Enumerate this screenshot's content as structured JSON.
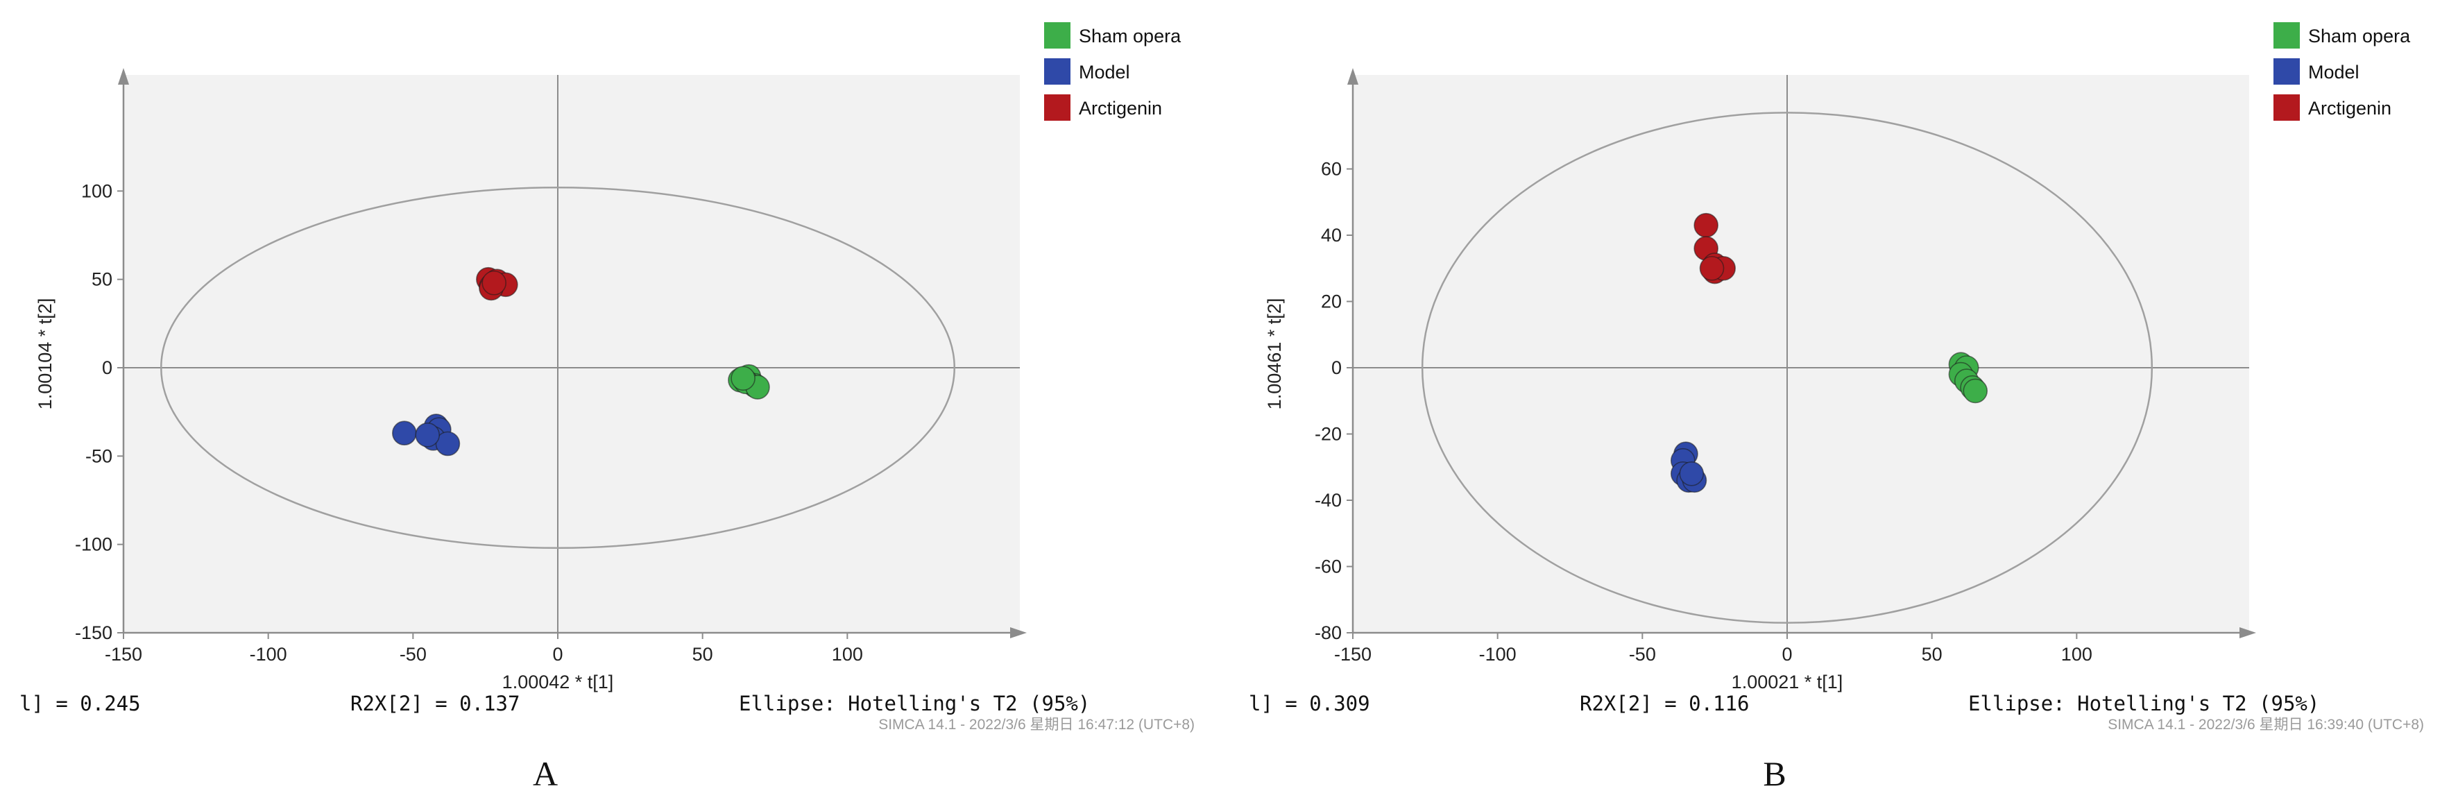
{
  "colors": {
    "plot_background": "#f2f2f2",
    "axis": "#8c8c8c",
    "ellipse": "#a0a0a0",
    "sham": "#3dae49",
    "model": "#2f49a8",
    "arctigenin": "#b3191e"
  },
  "panels": [
    {
      "label": "A",
      "legend": [
        "Sham opera",
        "Model",
        "Arctigenin"
      ],
      "stat_left": "l] = 0.245",
      "stat_mid": "R2X[2] = 0.137",
      "stat_right": "Ellipse: Hotelling's T2 (95%)",
      "footer": "SIMCA 14.1 - 2022/3/6 星期日 16:47:12 (UTC+8)",
      "chart_data": {
        "type": "scatter",
        "xlabel": "1.00042 * t[1]",
        "ylabel": "1.00104 * t[2]",
        "xlim": [
          -150,
          150
        ],
        "ylim": [
          -150,
          150
        ],
        "x_ticks": [
          -150,
          -100,
          -50,
          0,
          50,
          100
        ],
        "y_ticks": [
          -150,
          -100,
          -50,
          0,
          50,
          100
        ],
        "grid": false,
        "legend_position": "top-right, outside plot",
        "ellipse": {
          "label": "Hotelling's T2 (95%)",
          "x_radius": 137,
          "y_radius": 102
        },
        "series": [
          {
            "name": "Sham opera",
            "color": "#3dae49",
            "points": [
              [
                63,
                -7
              ],
              [
                66,
                -5
              ],
              [
                68,
                -10
              ],
              [
                65,
                -8
              ],
              [
                69,
                -11
              ],
              [
                64,
                -6
              ]
            ]
          },
          {
            "name": "Model",
            "color": "#2f49a8",
            "points": [
              [
                -53,
                -37
              ],
              [
                -42,
                -33
              ],
              [
                -41,
                -35
              ],
              [
                -43,
                -40
              ],
              [
                -38,
                -43
              ],
              [
                -45,
                -38
              ]
            ]
          },
          {
            "name": "Arctigenin",
            "color": "#b3191e",
            "points": [
              [
                -24,
                50
              ],
              [
                -23,
                46
              ],
              [
                -21,
                49
              ],
              [
                -18,
                47
              ],
              [
                -23,
                45
              ],
              [
                -22,
                48
              ]
            ]
          }
        ]
      }
    },
    {
      "label": "B",
      "legend": [
        "Sham opera",
        "Model",
        "Arctigenin"
      ],
      "stat_left": "l] = 0.309",
      "stat_mid": "R2X[2] = 0.116",
      "stat_right": "Ellipse: Hotelling's T2 (95%)",
      "footer": "SIMCA 14.1 - 2022/3/6 星期日 16:39:40 (UTC+8)",
      "chart_data": {
        "type": "scatter",
        "xlabel": "1.00021 * t[1]",
        "ylabel": "1.00461 * t[2]",
        "xlim": [
          -150,
          150
        ],
        "ylim": [
          -80,
          80
        ],
        "x_ticks": [
          -150,
          -100,
          -50,
          0,
          50,
          100
        ],
        "y_ticks": [
          -80,
          -60,
          -40,
          -20,
          0,
          20,
          40,
          60
        ],
        "grid": false,
        "legend_position": "top-right, outside plot",
        "ellipse": {
          "label": "Hotelling's T2 (95%)",
          "x_radius": 126,
          "y_radius": 77
        },
        "series": [
          {
            "name": "Sham opera",
            "color": "#3dae49",
            "points": [
              [
                60,
                1
              ],
              [
                62,
                0
              ],
              [
                60,
                -2
              ],
              [
                62,
                -4
              ],
              [
                64,
                -6
              ],
              [
                65,
                -7
              ]
            ]
          },
          {
            "name": "Model",
            "color": "#2f49a8",
            "points": [
              [
                -35,
                -26
              ],
              [
                -36,
                -28
              ],
              [
                -36,
                -32
              ],
              [
                -34,
                -34
              ],
              [
                -32,
                -34
              ],
              [
                -33,
                -32
              ]
            ]
          },
          {
            "name": "Arctigenin",
            "color": "#b3191e",
            "points": [
              [
                -28,
                43
              ],
              [
                -28,
                36
              ],
              [
                -25,
                31
              ],
              [
                -25,
                29
              ],
              [
                -22,
                30
              ],
              [
                -26,
                30
              ]
            ]
          }
        ]
      }
    }
  ]
}
